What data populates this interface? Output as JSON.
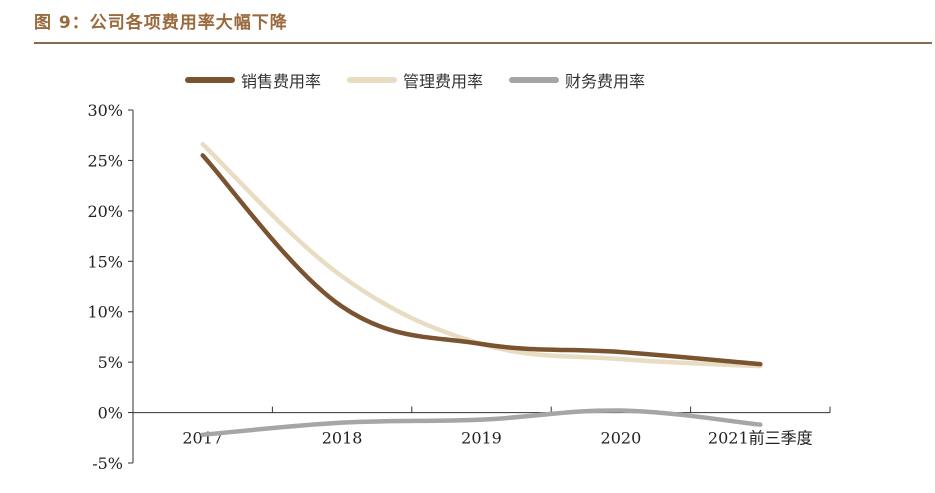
{
  "figure_title": "图 9：公司各项费用率大幅下降",
  "chart_data": {
    "type": "line",
    "title": "",
    "xlabel": "",
    "ylabel": "",
    "categories": [
      "2017",
      "2018",
      "2019",
      "2020",
      "2021前三季度"
    ],
    "ylim": [
      -5,
      30
    ],
    "yticks": [
      "-5%",
      "0%",
      "5%",
      "10%",
      "15%",
      "20%",
      "25%",
      "30%"
    ],
    "ytick_values": [
      -5,
      0,
      5,
      10,
      15,
      20,
      25,
      30
    ],
    "legend_position": "top",
    "grid": false,
    "series": [
      {
        "name": "销售费用率",
        "color": "#7a5430",
        "values": [
          25.5,
          10.5,
          6.8,
          6.0,
          4.8
        ]
      },
      {
        "name": "管理费用率",
        "color": "#e8dcc3",
        "values": [
          26.6,
          13.5,
          6.8,
          5.3,
          4.6
        ]
      },
      {
        "name": "财务费用率",
        "color": "#a6a6a6",
        "values": [
          -2.2,
          -1.0,
          -0.7,
          0.2,
          -1.2
        ]
      }
    ]
  }
}
